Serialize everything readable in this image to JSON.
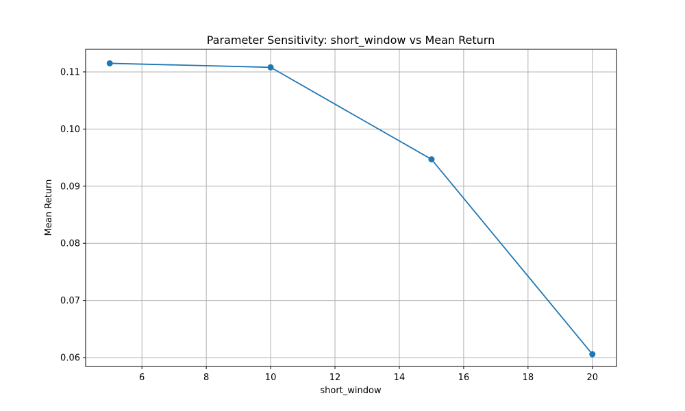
{
  "chart_data": {
    "type": "line",
    "title": "Parameter Sensitivity: short_window vs Mean Return",
    "xlabel": "short_window",
    "ylabel": "Mean Return",
    "xlim": [
      4.25,
      20.75
    ],
    "ylim": [
      0.05845,
      0.11395
    ],
    "x_ticks": [
      6,
      8,
      10,
      12,
      14,
      16,
      18,
      20
    ],
    "x_tick_labels": [
      "6",
      "8",
      "10",
      "12",
      "14",
      "16",
      "18",
      "20"
    ],
    "y_ticks": [
      0.06,
      0.07,
      0.08,
      0.09,
      0.1,
      0.11
    ],
    "y_tick_labels": [
      "0.06",
      "0.07",
      "0.08",
      "0.09",
      "0.10",
      "0.11"
    ],
    "grid": true,
    "series": [
      {
        "color": "#1f77b4",
        "marker": "circle",
        "x": [
          5,
          10,
          15,
          20
        ],
        "y": [
          0.1115,
          0.1108,
          0.0947,
          0.0606
        ]
      }
    ]
  }
}
